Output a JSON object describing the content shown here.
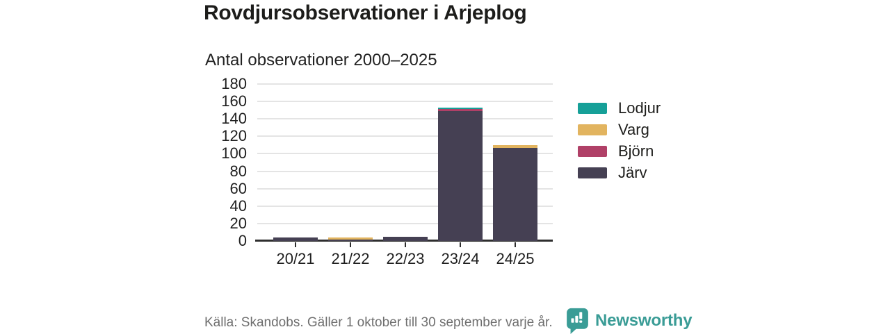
{
  "title": "Rovdjursobservationer i Arjeplog",
  "subtitle": "Antal observationer 2000–2025",
  "footer": {
    "source": "Källa: Skandobs. Gäller 1 oktober till 30 september varje år.",
    "brand": "Newsworthy"
  },
  "colors": {
    "lodjur": "#16a098",
    "varg": "#e2b45f",
    "bjorn": "#b04067",
    "jarv": "#454053",
    "brand_teal": "#3a9c96",
    "grid": "#e4e4e4",
    "axis": "#2e2e2e",
    "text_dark": "#1d1d1b",
    "text_muted": "#6f6f6f"
  },
  "chart_data": {
    "type": "bar",
    "stacked": true,
    "title": "Antal observationer 2000–2025",
    "xlabel": "",
    "ylabel": "",
    "categories": [
      "20/21",
      "21/22",
      "22/23",
      "23/24",
      "24/25"
    ],
    "series": [
      {
        "name": "Lodjur",
        "color": "#16a098",
        "values": [
          0,
          0,
          0,
          2,
          0
        ]
      },
      {
        "name": "Varg",
        "color": "#e2b45f",
        "values": [
          0,
          2,
          0,
          0,
          3
        ]
      },
      {
        "name": "Björn",
        "color": "#b04067",
        "values": [
          0,
          0,
          0,
          2,
          0
        ]
      },
      {
        "name": "Järv",
        "color": "#454053",
        "values": [
          4,
          2,
          5,
          149,
          107
        ]
      }
    ],
    "totals": [
      4,
      4,
      5,
      153,
      110
    ],
    "stack_order_bottom_to_top": [
      "Järv",
      "Björn",
      "Varg",
      "Lodjur"
    ],
    "ylim": [
      0,
      180
    ],
    "ytick_step": 20,
    "yticks": [
      0,
      20,
      40,
      60,
      80,
      100,
      120,
      140,
      160,
      180
    ],
    "grid": true,
    "legend_position": "right"
  }
}
